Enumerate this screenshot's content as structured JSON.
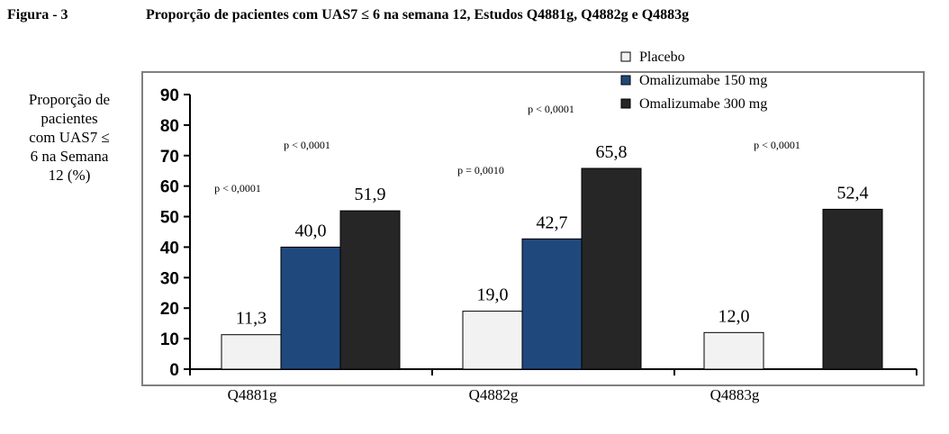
{
  "figure_label": "Figura - 3",
  "title": "Proporção de pacientes com UAS7 ≤ 6 na semana 12, Estudos Q4881g, Q4882g e Q4883g",
  "ylabel_lines": [
    "Proporção de",
    "pacientes",
    "com UAS7 ≤",
    "6 na Semana",
    "12 (%)"
  ],
  "colors": {
    "placebo": "#f2f2f2",
    "omalizumabe_150": "#1f497d",
    "omalizumabe_300": "#262626"
  },
  "chart_data": {
    "type": "bar",
    "categories": [
      "Q4881g",
      "Q4882g",
      "Q4883g"
    ],
    "series": [
      {
        "name": "Placebo",
        "values": [
          11.3,
          19.0,
          12.0
        ],
        "labels": [
          "11,3",
          "19,0",
          "12,0"
        ]
      },
      {
        "name": "Omalizumabe 150 mg",
        "values": [
          40.0,
          42.7,
          null
        ],
        "labels": [
          "40,0",
          "42,7",
          ""
        ]
      },
      {
        "name": "Omalizumabe 300 mg",
        "values": [
          51.9,
          65.8,
          52.4
        ],
        "labels": [
          "51,9",
          "65,8",
          "52,4"
        ]
      }
    ],
    "yticks": [
      "0",
      "10",
      "20",
      "30",
      "40",
      "50",
      "60",
      "70",
      "80",
      "90"
    ],
    "ylim": [
      0,
      90
    ],
    "legend_position": "top-right",
    "annotations": [
      {
        "text": "p < 0,0001",
        "category": 0,
        "series": 1
      },
      {
        "text": "p < 0,0001",
        "category": 0,
        "series": 2
      },
      {
        "text": "p = 0,0010",
        "category": 1,
        "series": 1
      },
      {
        "text": "p < 0,0001",
        "category": 1,
        "series": 2
      },
      {
        "text": "p < 0,0001",
        "category": 2,
        "series": 2
      }
    ]
  }
}
